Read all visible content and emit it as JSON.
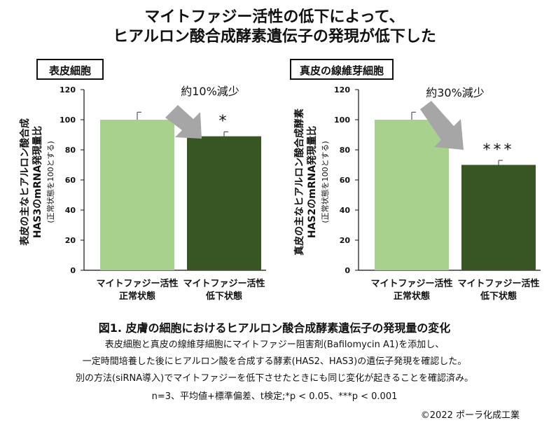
{
  "title": {
    "line1": "マイトファジー活性の低下によって、",
    "line2": "ヒアルロン酸合成酵素遺伝子の発現が低下した"
  },
  "chart_data": [
    {
      "type": "bar",
      "panel_label": "表皮細胞",
      "annotation": "約10%減少",
      "ylabel_main": "表皮の主なヒアルロン酸合成",
      "ylabel_sub": "HAS3のmRNA発現量比",
      "ylabel_note": "(正常状態を100とする)",
      "ylim": [
        0,
        120
      ],
      "yticks": [
        "0",
        "20",
        "40",
        "60",
        "80",
        "100",
        "120"
      ],
      "categories": [
        {
          "line1": "マイトファジー活性",
          "line2": "正常状態"
        },
        {
          "line1": "マイトファジー活性",
          "line2": "低下状態"
        }
      ],
      "values": [
        100,
        89
      ],
      "errors": [
        5,
        3
      ],
      "colors": [
        "#a9d18e",
        "#375623"
      ],
      "significance": [
        "",
        "*"
      ]
    },
    {
      "type": "bar",
      "panel_label": "真皮の線維芽細胞",
      "annotation": "約30%減少",
      "ylabel_main": "真皮の主なヒアルロン酸合成酵素",
      "ylabel_sub": "HAS2のmRNA発現量比",
      "ylabel_note": "(正常状態を100とする)",
      "ylim": [
        0,
        120
      ],
      "yticks": [
        "0",
        "20",
        "40",
        "60",
        "80",
        "100",
        "120"
      ],
      "categories": [
        {
          "line1": "マイトファジー活性",
          "line2": "正常状態"
        },
        {
          "line1": "マイトファジー活性",
          "line2": "低下状態"
        }
      ],
      "values": [
        100,
        70
      ],
      "errors": [
        5,
        3
      ],
      "colors": [
        "#a9d18e",
        "#375623"
      ],
      "significance": [
        "",
        "***"
      ]
    }
  ],
  "caption": {
    "title": "図1. 皮膚の細胞におけるヒアルロン酸合成酵素遺伝子の発現量の変化",
    "desc1": "表皮細胞と真皮の線維芽細胞にマイトファジー阻害剤(Bafilomycin A1)を添加し、",
    "desc2": "一定時間培養した後にヒアルロン酸を合成する酵素(HAS2、HAS3)の遺伝子発現を確認した。",
    "desc3": "別の方法(siRNA導入)でマイトファジーを低下させたときにも同じ変化が起きることを確認済み。",
    "stats": "n=3、平均値+標準偏差、t検定;*p < 0.05、***p < 0.001",
    "copyright": "©2022 ポーラ化成工業"
  },
  "colors": {
    "arrow": "#a6a6a6",
    "axis": "#111111"
  }
}
